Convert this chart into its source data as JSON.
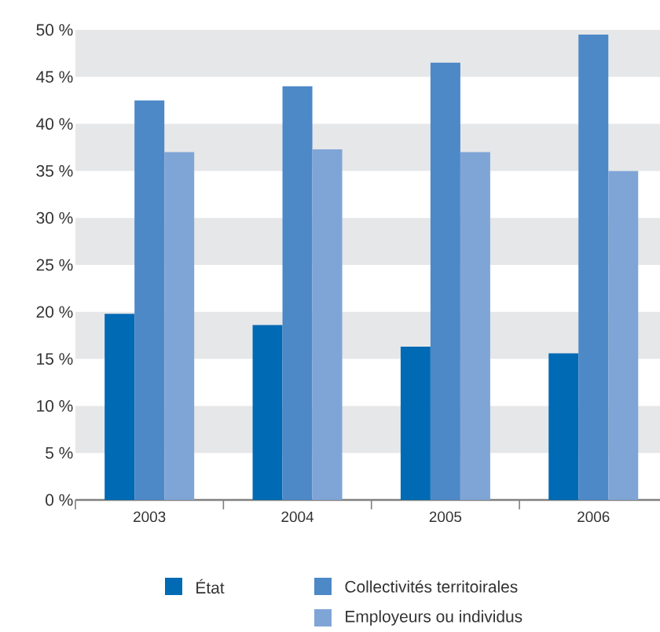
{
  "chart_data": {
    "type": "bar",
    "categories": [
      "2003",
      "2004",
      "2005",
      "2006"
    ],
    "series": [
      {
        "name": "État",
        "color": "#006ab4",
        "values": [
          19.8,
          18.6,
          16.3,
          15.6
        ]
      },
      {
        "name": "Collectivités territoirales",
        "color": "#4d88c7",
        "values": [
          42.5,
          44.0,
          46.5,
          49.5
        ]
      },
      {
        "name": "Employeurs ou individus",
        "color": "#7fa5d6",
        "values": [
          37.0,
          37.3,
          37.0,
          35.0
        ]
      }
    ],
    "ylim": [
      0,
      50
    ],
    "yticks": [
      {
        "value": 0,
        "label": "0 %"
      },
      {
        "value": 5,
        "label": "5 %"
      },
      {
        "value": 10,
        "label": "10 %"
      },
      {
        "value": 15,
        "label": "15 %"
      },
      {
        "value": 20,
        "label": "20 %"
      },
      {
        "value": 25,
        "label": "25 %"
      },
      {
        "value": 30,
        "label": "30 %"
      },
      {
        "value": 35,
        "label": "35 %"
      },
      {
        "value": 40,
        "label": "40 %"
      },
      {
        "value": 45,
        "label": "45 %"
      },
      {
        "value": 50,
        "label": "50 %"
      }
    ],
    "bands": [
      {
        "axis": "y",
        "from": 5,
        "to": 10,
        "color": "#e6e7e9"
      },
      {
        "axis": "y",
        "from": 15,
        "to": 20,
        "color": "#e6e7e9"
      },
      {
        "axis": "y",
        "from": 25,
        "to": 30,
        "color": "#e6e7e9"
      },
      {
        "axis": "y",
        "from": 35,
        "to": 40,
        "color": "#e6e7e9"
      },
      {
        "axis": "y",
        "from": 45,
        "to": 50,
        "color": "#e6e7e9"
      }
    ],
    "legend": "bottom"
  }
}
